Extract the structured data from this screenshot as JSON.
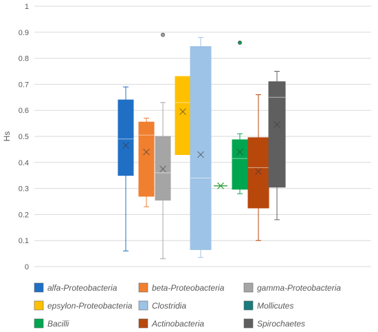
{
  "chart_data": {
    "type": "box",
    "title": "",
    "ylabel": "Hs",
    "ylim": [
      0,
      1
    ],
    "yticks": [
      "0",
      "0.1",
      "0.2",
      "0.3",
      "0.4",
      "0.5",
      "0.6",
      "0.7",
      "0.8",
      "0.9",
      "1"
    ],
    "grid": true,
    "legend_position": "bottom",
    "series": [
      {
        "name": "alfa-Proteobacteria",
        "color": "#1F6FC5",
        "min": 0.06,
        "q1": 0.35,
        "median": 0.49,
        "q3": 0.64,
        "max": 0.69,
        "mean": 0.465,
        "outliers": []
      },
      {
        "name": "beta-Proteobacteria",
        "color": "#F07F2F",
        "min": 0.23,
        "q1": 0.27,
        "median": 0.505,
        "q3": 0.555,
        "max": 0.57,
        "mean": 0.44,
        "outliers": []
      },
      {
        "name": "gamma-Proteobacteria",
        "color": "#A5A5A5",
        "min": 0.03,
        "q1": 0.255,
        "median": 0.36,
        "q3": 0.5,
        "max": 0.63,
        "mean": 0.375,
        "outliers": [
          0.89
        ]
      },
      {
        "name": "epsylon-Proteobacteria",
        "color": "#FFC000",
        "min": 0.43,
        "q1": 0.43,
        "median": 0.63,
        "q3": 0.73,
        "max": 0.73,
        "mean": 0.595,
        "outliers": []
      },
      {
        "name": "Clostridia",
        "color": "#9DC3E6",
        "min": 0.035,
        "q1": 0.065,
        "median": 0.34,
        "q3": 0.845,
        "max": 0.88,
        "mean": 0.43,
        "outliers": []
      },
      {
        "name": "Mollicutes",
        "color": "#1B7A7C",
        "min": 0.31,
        "q1": 0.31,
        "median": 0.31,
        "q3": 0.31,
        "max": 0.31,
        "mean": 0.31,
        "outliers": [],
        "mean_color": "#2E9E3A"
      },
      {
        "name": "Bacilli",
        "color": "#00A550",
        "min": 0.28,
        "q1": 0.297,
        "median": 0.415,
        "q3": 0.487,
        "max": 0.51,
        "mean": 0.44,
        "outliers": [
          0.86
        ]
      },
      {
        "name": "Actinobacteria",
        "color": "#B8470C",
        "min": 0.1,
        "q1": 0.225,
        "median": 0.38,
        "q3": 0.495,
        "max": 0.66,
        "mean": 0.365,
        "outliers": []
      },
      {
        "name": "Spirochaetes",
        "color": "#5F5F5F",
        "min": 0.18,
        "q1": 0.305,
        "median": 0.65,
        "q3": 0.71,
        "max": 0.75,
        "mean": 0.545,
        "outliers": []
      }
    ]
  }
}
